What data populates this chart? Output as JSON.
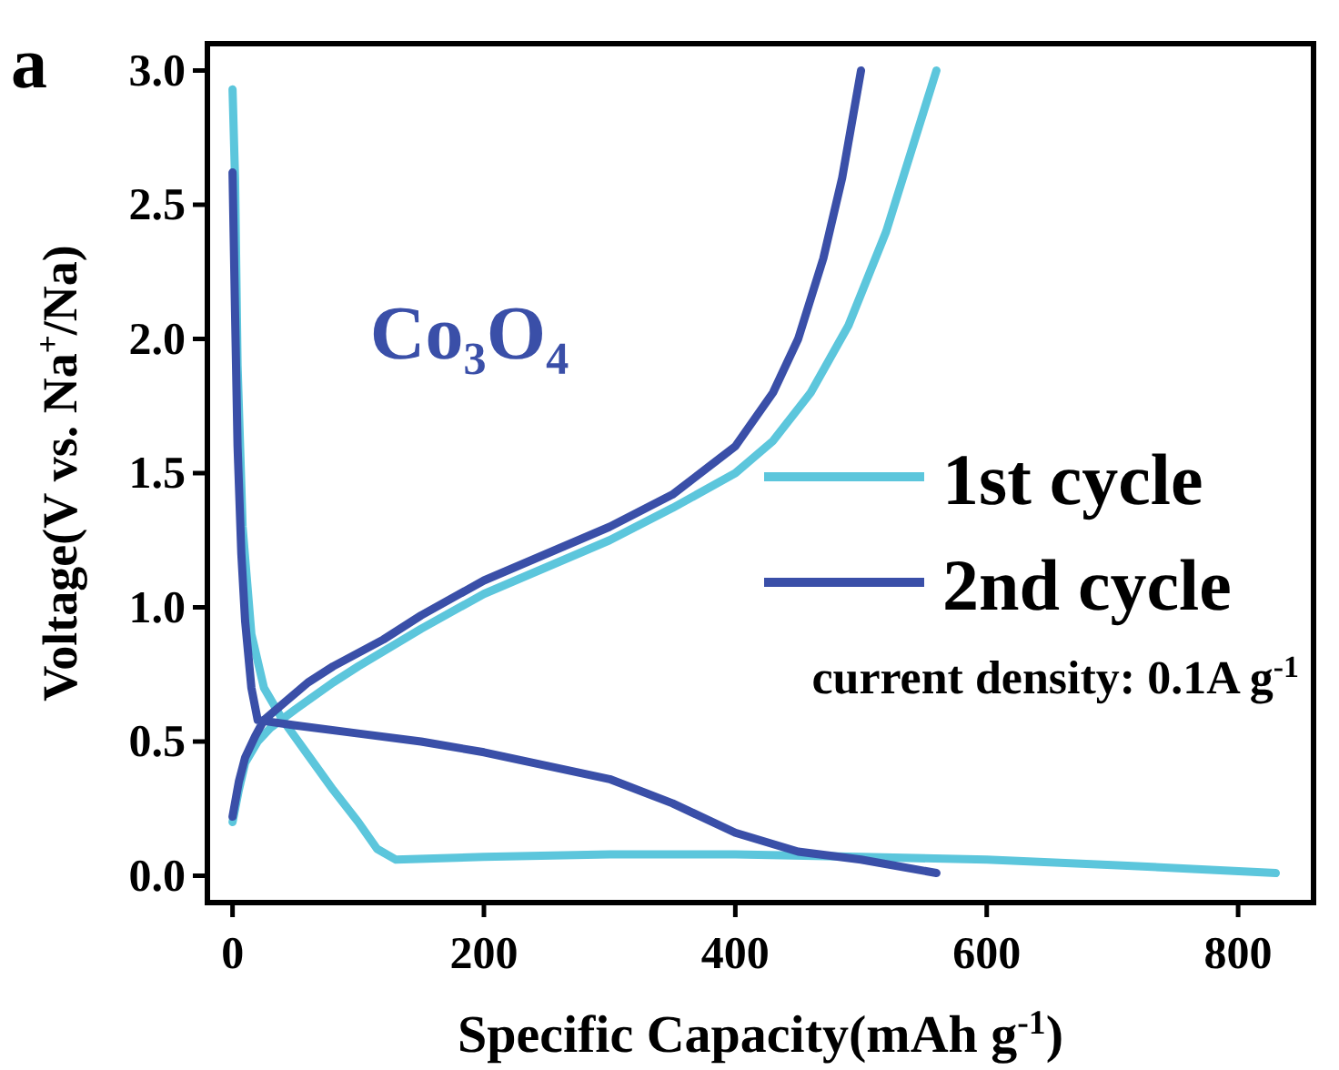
{
  "chart_data": {
    "type": "line",
    "xlabel": "Specific Capacity(mAh g$^{-1}$)",
    "ylabel": "Voltage(V vs. Na$^{+}$/Na)",
    "annotations": [
      "a",
      "Co₃O₄",
      "current density: 0.1A g$^{-1}$"
    ],
    "xlim": [
      -20,
      860
    ],
    "xticks": [
      0,
      200,
      400,
      600,
      800
    ],
    "ylim": [
      -0.1,
      3.1
    ],
    "yticks": [
      {
        "value": 0,
        "label": "0.0"
      },
      {
        "value": 0.5,
        "label": "0.5"
      },
      {
        "value": 1,
        "label": "1.0"
      },
      {
        "value": 1.5,
        "label": "1.5"
      },
      {
        "value": 2,
        "label": "2.0"
      },
      {
        "value": 2.5,
        "label": "2.5"
      },
      {
        "value": 3,
        "label": "3.0"
      }
    ],
    "grid": false,
    "legend": "right",
    "line_style": "solid",
    "marker": "none",
    "series": [
      {
        "name": "1st cycle",
        "color": "#5cc6dc",
        "x": [
          0,
          2,
          4,
          8,
          15,
          25,
          40,
          60,
          80,
          100,
          115,
          130,
          200,
          300,
          400,
          500,
          600,
          700,
          830,
          null,
          0,
          5,
          10,
          20,
          30,
          50,
          80,
          100,
          150,
          200,
          250,
          300,
          350,
          400,
          430,
          460,
          490,
          520,
          540,
          560
        ],
        "values": [
          2.93,
          2.6,
          1.9,
          1.3,
          0.9,
          0.7,
          0.58,
          0.45,
          0.32,
          0.2,
          0.1,
          0.06,
          0.07,
          0.08,
          0.08,
          0.07,
          0.06,
          0.04,
          0.01,
          null,
          0.2,
          0.32,
          0.42,
          0.5,
          0.55,
          0.62,
          0.72,
          0.78,
          0.92,
          1.05,
          1.15,
          1.25,
          1.37,
          1.5,
          1.62,
          1.8,
          2.05,
          2.4,
          2.7,
          3.0
        ]
      },
      {
        "name": "2nd cycle",
        "color": "#3a4fa8",
        "x": [
          0,
          2,
          4,
          7,
          10,
          15,
          20,
          50,
          100,
          150,
          200,
          250,
          300,
          350,
          400,
          450,
          500,
          560,
          null,
          0,
          5,
          10,
          18,
          25,
          40,
          60,
          80,
          100,
          120,
          150,
          200,
          250,
          300,
          350,
          400,
          430,
          450,
          470,
          485,
          500
        ],
        "values": [
          2.62,
          2.1,
          1.6,
          1.2,
          0.95,
          0.7,
          0.58,
          0.56,
          0.53,
          0.5,
          0.46,
          0.41,
          0.36,
          0.27,
          0.16,
          0.09,
          0.06,
          0.01,
          null,
          0.22,
          0.35,
          0.44,
          0.52,
          0.58,
          0.64,
          0.72,
          0.78,
          0.83,
          0.88,
          0.97,
          1.1,
          1.2,
          1.3,
          1.42,
          1.6,
          1.8,
          2.0,
          2.3,
          2.6,
          3.0
        ]
      }
    ]
  }
}
